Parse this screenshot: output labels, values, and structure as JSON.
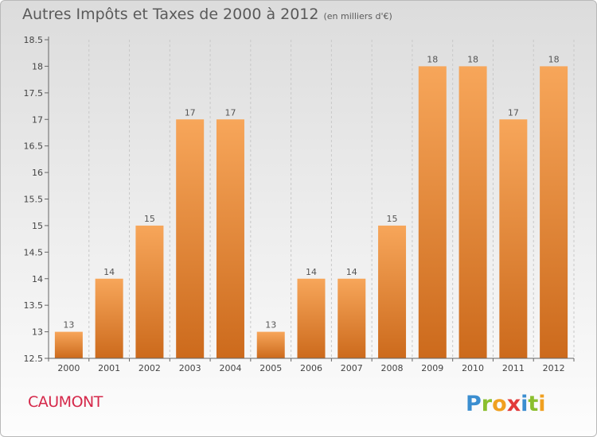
{
  "title": "Autres Impôts et Taxes de 2000 à 2012",
  "subtitle": "(en milliers d'€)",
  "commune": "CAUMONT",
  "logo_text": "Proxiti",
  "colors": {
    "bar_light": "#f7a65a",
    "bar_dark": "#cc6a1c",
    "commune": "#d5284a",
    "title": "#5a5a5a"
  },
  "chart_data": {
    "type": "bar",
    "categories": [
      "2000",
      "2001",
      "2002",
      "2003",
      "2004",
      "2005",
      "2006",
      "2007",
      "2008",
      "2009",
      "2010",
      "2011",
      "2012"
    ],
    "values": [
      13,
      14,
      15,
      17,
      17,
      13,
      14,
      14,
      15,
      18,
      18,
      17,
      18
    ],
    "ylim": [
      12.5,
      18.5
    ],
    "yticks": [
      12.5,
      13,
      13.5,
      14,
      14.5,
      15,
      15.5,
      16,
      16.5,
      17,
      17.5,
      18,
      18.5
    ],
    "grid": "vertical dashed",
    "legend": "none"
  }
}
